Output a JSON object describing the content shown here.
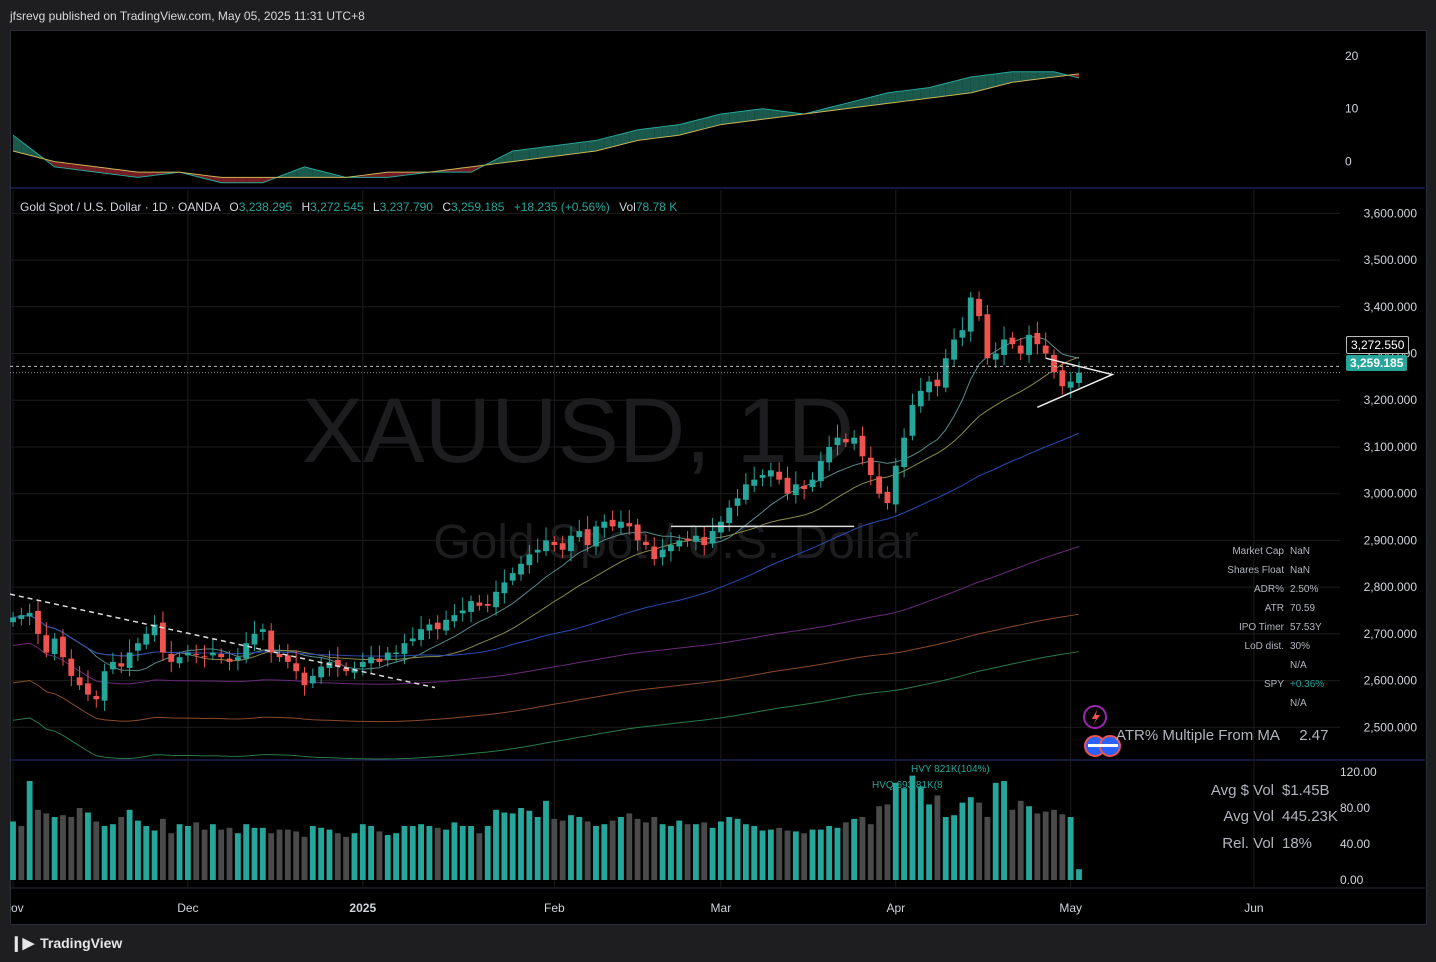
{
  "header": {
    "text": "jfsrevg published on TradingView.com, May 05, 2025 11:31 UTC+8"
  },
  "footer": {
    "brand": "TradingView"
  },
  "watermark": {
    "symbol": "XAUUSD, 1D",
    "name": "Gold Spot / U.S. Dollar"
  },
  "symbol_line": {
    "name": "Gold Spot / U.S. Dollar · 1D · OANDA",
    "o_label": "O",
    "o": "3,238.295",
    "h_label": "H",
    "h": "3,272.545",
    "l_label": "L",
    "l": "3,237.790",
    "c_label": "C",
    "c": "3,259.185",
    "change": "+18.235 (+0.56%)",
    "vol_label": "Vol",
    "vol": "78.78 K"
  },
  "price_tags": {
    "high": "3,272.550",
    "last": "3,259.185"
  },
  "stats": [
    {
      "k": "Market Cap",
      "v": "NaN"
    },
    {
      "k": "Shares Float",
      "v": "NaN"
    },
    {
      "k": "ADR%",
      "v": "2.50%"
    },
    {
      "k": "ATR",
      "v": "70.59"
    },
    {
      "k": "IPO Timer",
      "v": "57.53Y"
    },
    {
      "k": "LoD dist.",
      "v": "30%"
    },
    {
      "k": "",
      "v": "N/A"
    },
    {
      "k": "SPY",
      "v": "+0.36%"
    },
    {
      "k": "",
      "v": "N/A"
    }
  ],
  "atr_multiple": {
    "label": "ATR% Multiple From MA",
    "value": "2.47"
  },
  "vol_stats": [
    {
      "k": "Avg $ Vol",
      "v": "$1.45B"
    },
    {
      "k": "Avg Vol",
      "v": "445.23K"
    },
    {
      "k": "Rel. Vol",
      "v": "18%"
    }
  ],
  "vol_annotations": {
    "hvy": "HVY 821K(104%)",
    "hvq": "HVQ 693.81K(8"
  },
  "colors": {
    "up": "#26a69a",
    "down": "#ef5350",
    "bg": "#000000",
    "grid": "#1c1c1c",
    "vol_gray": "#4a4a4a"
  },
  "chart_data": [
    {
      "type": "area",
      "panel": "oscillator",
      "ylim": [
        -5,
        23
      ],
      "yticks": [
        0,
        10,
        20
      ],
      "x_index": [
        0,
        5,
        10,
        15,
        20,
        25,
        30,
        35,
        40,
        45,
        50,
        55,
        60,
        65,
        70,
        75,
        80,
        85,
        90,
        95,
        100,
        105,
        110,
        115,
        120,
        125,
        130,
        131
      ],
      "series": [
        {
          "values": [
            5,
            -1,
            -2,
            -3,
            -2,
            -4,
            -4,
            -1,
            -3,
            -3,
            -2,
            -2,
            2,
            3,
            4,
            6,
            7,
            9,
            10,
            9,
            11,
            13,
            14,
            16,
            17,
            17,
            15,
            13
          ]
        },
        {
          "values": [
            2,
            0,
            -1,
            -2,
            -2,
            -3,
            -3,
            -3,
            -3,
            -2,
            -2,
            -1,
            0,
            1,
            2,
            4,
            5,
            7,
            8,
            9,
            10,
            11,
            12,
            13,
            15,
            16,
            17,
            17
          ]
        }
      ]
    },
    {
      "type": "candlestick",
      "panel": "price",
      "ylim": [
        2430,
        3650
      ],
      "yticks": [
        2500,
        2600,
        2700,
        2800,
        2900,
        3000,
        3100,
        3200,
        3300,
        3400,
        3500,
        3600
      ],
      "ytick_labels": [
        "2,500.000",
        "2,600.000",
        "2,700.000",
        "2,800.000",
        "2,900.000",
        "3,000.000",
        "3,100.000",
        "3,200.000",
        "3,300.000",
        "3,400.000",
        "3,500.000",
        "3,600.000"
      ],
      "xticks": [
        {
          "label": "Nov",
          "index": 0
        },
        {
          "label": "Dec",
          "index": 21
        },
        {
          "label": "2025",
          "index": 42
        },
        {
          "label": "Feb",
          "index": 65
        },
        {
          "label": "Mar",
          "index": 85
        },
        {
          "label": "Apr",
          "index": 106
        },
        {
          "label": "May",
          "index": 127
        },
        {
          "label": "Jun",
          "index": 149
        }
      ],
      "close": [
        2735,
        2740,
        2745,
        2700,
        2660,
        2690,
        2650,
        2610,
        2590,
        2570,
        2560,
        2620,
        2640,
        2630,
        2660,
        2680,
        2700,
        2720,
        2660,
        2640,
        2650,
        2660,
        2655,
        2650,
        2660,
        2650,
        2640,
        2650,
        2680,
        2700,
        2710,
        2660,
        2650,
        2640,
        2620,
        2590,
        2610,
        2630,
        2640,
        2630,
        2620,
        2625,
        2640,
        2650,
        2640,
        2660,
        2660,
        2680,
        2690,
        2710,
        2720,
        2710,
        2730,
        2740,
        2750,
        2770,
        2760,
        2760,
        2790,
        2810,
        2830,
        2850,
        2870,
        2880,
        2900,
        2890,
        2880,
        2910,
        2920,
        2890,
        2930,
        2940,
        2930,
        2940,
        2930,
        2900,
        2890,
        2860,
        2880,
        2890,
        2900,
        2900,
        2910,
        2890,
        2920,
        2940,
        2970,
        2990,
        3020,
        3030,
        3040,
        3050,
        3030,
        3000,
        3020,
        3010,
        3030,
        3070,
        3100,
        3120,
        3110,
        3120,
        3080,
        3040,
        3000,
        2980,
        3060,
        3120,
        3190,
        3220,
        3240,
        3230,
        3290,
        3330,
        3350,
        3420,
        3380,
        3290,
        3300,
        3330,
        3320,
        3300,
        3340,
        3320,
        3300,
        3260,
        3230,
        3240,
        3259
      ]
    },
    {
      "type": "bar",
      "panel": "volume",
      "ylim": [
        0,
        120
      ],
      "yticks": [
        0,
        40,
        80,
        120
      ],
      "ytick_labels": [
        "0.00",
        "40.00",
        "80.00",
        "120.00"
      ],
      "values": [
        65,
        60,
        110,
        78,
        74,
        70,
        72,
        70,
        80,
        75,
        65,
        60,
        62,
        70,
        78,
        66,
        60,
        55,
        68,
        52,
        62,
        60,
        64,
        56,
        62,
        56,
        58,
        52,
        62,
        58,
        58,
        52,
        56,
        56,
        54,
        48,
        60,
        58,
        56,
        52,
        48,
        52,
        62,
        60,
        54,
        50,
        52,
        60,
        60,
        62,
        60,
        58,
        56,
        64,
        60,
        60,
        52,
        60,
        78,
        75,
        74,
        80,
        77,
        70,
        88,
        68,
        66,
        72,
        70,
        65,
        60,
        62,
        66,
        70,
        74,
        68,
        64,
        70,
        62,
        60,
        66,
        62,
        62,
        64,
        58,
        65,
        70,
        68,
        62,
        60,
        55,
        56,
        58,
        55,
        54,
        52,
        56,
        56,
        60,
        58,
        64,
        68,
        70,
        62,
        82,
        84,
        108,
        102,
        116,
        104,
        84,
        94,
        70,
        72,
        86,
        92,
        86,
        70,
        108,
        110,
        78,
        88,
        82,
        74,
        76,
        78,
        73,
        70,
        12
      ],
      "up": [
        1,
        0,
        1,
        0,
        0,
        1,
        0,
        0,
        0,
        1,
        0,
        1,
        1,
        0,
        1,
        1,
        1,
        1,
        0,
        0,
        1,
        1,
        0,
        0,
        1,
        0,
        0,
        1,
        1,
        1,
        1,
        0,
        0,
        0,
        0,
        0,
        1,
        1,
        1,
        0,
        0,
        1,
        1,
        1,
        0,
        1,
        1,
        1,
        1,
        1,
        1,
        0,
        1,
        1,
        1,
        1,
        0,
        1,
        1,
        1,
        1,
        1,
        1,
        1,
        1,
        0,
        0,
        1,
        1,
        0,
        1,
        1,
        0,
        1,
        0,
        0,
        0,
        0,
        1,
        1,
        1,
        0,
        1,
        0,
        1,
        1,
        1,
        1,
        1,
        1,
        1,
        1,
        0,
        0,
        1,
        0,
        1,
        1,
        1,
        1,
        0,
        1,
        0,
        0,
        0,
        0,
        1,
        1,
        1,
        1,
        1,
        0,
        1,
        1,
        1,
        1,
        0,
        0,
        1,
        1,
        0,
        0,
        1,
        0,
        0,
        0,
        0,
        1,
        1
      ]
    }
  ]
}
